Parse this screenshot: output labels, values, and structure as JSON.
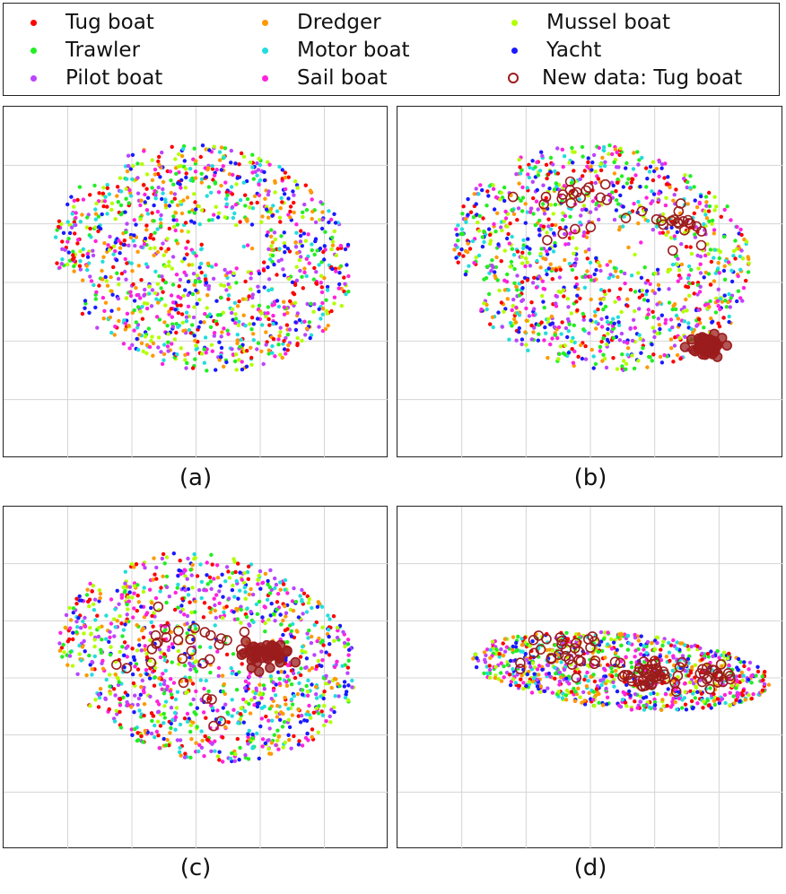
{
  "legend": {
    "entries": [
      {
        "label": "Tug boat",
        "color": "#ff0000",
        "marker": "dot"
      },
      {
        "label": "Dredger",
        "color": "#ff9900",
        "marker": "dot"
      },
      {
        "label": "Mussel boat",
        "color": "#b3ff00",
        "marker": "dot"
      },
      {
        "label": "Trawler",
        "color": "#22ee22",
        "marker": "dot"
      },
      {
        "label": "Motor boat",
        "color": "#22dddd",
        "marker": "dot"
      },
      {
        "label": "Yacht",
        "color": "#1a1aff",
        "marker": "dot"
      },
      {
        "label": "Pilot boat",
        "color": "#bb44ff",
        "marker": "dot"
      },
      {
        "label": "Sail boat",
        "color": "#ff22dd",
        "marker": "dot"
      },
      {
        "label": "New data: Tug boat",
        "color": "#9b1c1c",
        "marker": "open-circle"
      }
    ]
  },
  "chart_data": [
    {
      "type": "scatter",
      "caption": "(a)",
      "grid": true,
      "xlim": [
        0,
        10
      ],
      "ylim": [
        0,
        10
      ],
      "cloud": {
        "shape": "wide-ellipse",
        "cx": 5.2,
        "cy": 5.7,
        "rx": 3.9,
        "ry": 3.2,
        "tilt": -0.25
      },
      "new_data_points": []
    },
    {
      "type": "scatter",
      "caption": "(b)",
      "grid": true,
      "xlim": [
        0,
        10
      ],
      "ylim": [
        0,
        10
      ],
      "cloud": {
        "shape": "wide-ellipse",
        "cx": 5.3,
        "cy": 5.7,
        "rx": 3.9,
        "ry": 3.2,
        "tilt": -0.25
      },
      "new_data_clusters": [
        {
          "cx": 4.6,
          "cy": 7.2,
          "spread": 1.2,
          "count": 22
        },
        {
          "cx": 7.3,
          "cy": 6.6,
          "spread": 0.7,
          "count": 18
        },
        {
          "cx": 8.0,
          "cy": 3.2,
          "spread": 0.35,
          "count": 60
        }
      ]
    },
    {
      "type": "scatter",
      "caption": "(c)",
      "grid": true,
      "xlim": [
        0,
        10
      ],
      "ylim": [
        0,
        10
      ],
      "cloud": {
        "shape": "wide-ellipse",
        "cx": 5.3,
        "cy": 5.6,
        "rx": 3.9,
        "ry": 3.0,
        "tilt": -0.25
      },
      "new_data_clusters": [
        {
          "cx": 4.6,
          "cy": 6.0,
          "spread": 1.6,
          "count": 26
        },
        {
          "cx": 6.8,
          "cy": 5.7,
          "spread": 0.45,
          "count": 45
        },
        {
          "cx": 5.5,
          "cy": 3.9,
          "spread": 0.9,
          "count": 4
        }
      ]
    },
    {
      "type": "scatter",
      "caption": "(d)",
      "grid": true,
      "xlim": [
        0,
        10
      ],
      "ylim": [
        0,
        10
      ],
      "cloud": {
        "shape": "thin-band",
        "cx": 5.8,
        "cy": 5.2,
        "rx": 3.9,
        "ry": 1.1,
        "tilt": -0.1
      },
      "new_data_clusters": [
        {
          "cx": 4.4,
          "cy": 5.7,
          "spread": 1.0,
          "count": 30
        },
        {
          "cx": 6.6,
          "cy": 5.1,
          "spread": 0.55,
          "count": 45
        },
        {
          "cx": 8.2,
          "cy": 5.1,
          "spread": 0.5,
          "count": 20
        }
      ]
    }
  ]
}
